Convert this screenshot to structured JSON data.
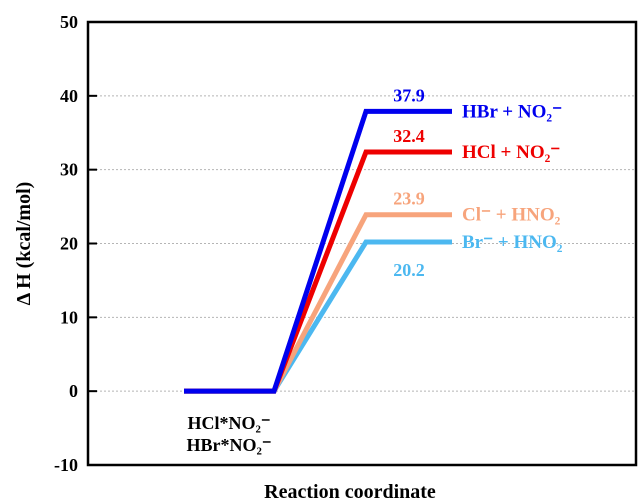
{
  "chart_data": {
    "type": "line",
    "xlabel": "Reaction coordinate",
    "ylabel": "Δ H (kcal/mol)",
    "ylim": [
      -10,
      50
    ],
    "yticks": [
      -10,
      0,
      10,
      20,
      30,
      40,
      50
    ],
    "grid": true,
    "reactant_labels": [
      "HCl*NO₂⁻",
      "HBr*NO₂⁻"
    ],
    "reactant_value": 0,
    "series": [
      {
        "name": "HBr + NO₂⁻",
        "value": 37.9,
        "value_label": "37.9",
        "color": "#0000ee",
        "x": [
          0,
          1,
          2,
          3
        ],
        "y": [
          0,
          0,
          37.9,
          37.9
        ]
      },
      {
        "name": "HCl + NO₂⁻",
        "value": 32.4,
        "value_label": "32.4",
        "color": "#ee0000",
        "x": [
          0,
          1,
          2,
          3
        ],
        "y": [
          0,
          0,
          32.4,
          32.4
        ]
      },
      {
        "name": "Cl⁻ + HNO₂",
        "value": 23.9,
        "value_label": "23.9",
        "color": "#f7a47c",
        "x": [
          0,
          1,
          2,
          3
        ],
        "y": [
          0,
          0,
          23.9,
          23.9
        ]
      },
      {
        "name": "Br⁻ + HNO₂",
        "value": 20.2,
        "value_label": "20.2",
        "color": "#4cb8f0",
        "x": [
          0,
          1,
          2,
          3
        ],
        "y": [
          0,
          0,
          20.2,
          20.2
        ]
      }
    ]
  }
}
